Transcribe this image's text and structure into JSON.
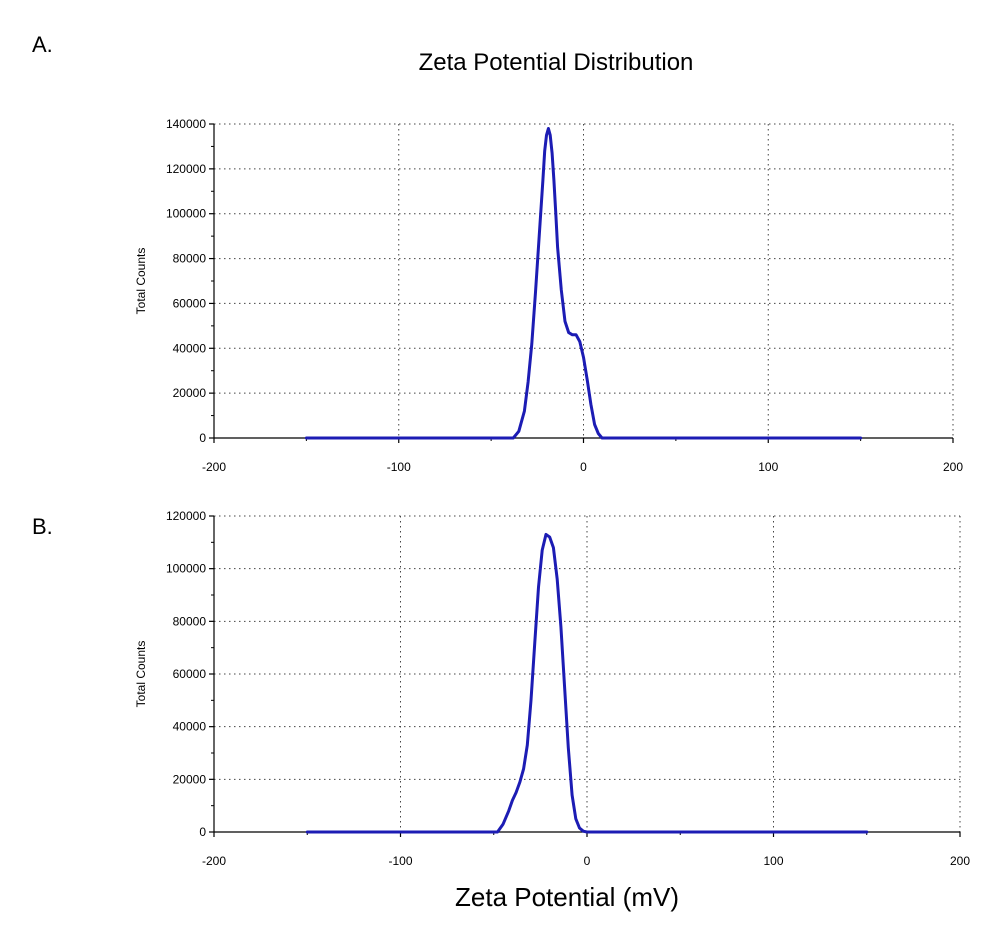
{
  "figure": {
    "title": "Zeta Potential Distribution",
    "xlabel": "Zeta Potential (mV)",
    "line_color": "#1c1cb4"
  },
  "chart_data": [
    {
      "type": "line",
      "panel_label": "A.",
      "ylabel": "Total Counts",
      "xlim": [
        -200,
        200
      ],
      "ylim": [
        0,
        140000
      ],
      "x_ticks": [
        -200,
        -100,
        0,
        100,
        200
      ],
      "y_ticks": [
        0,
        20000,
        40000,
        60000,
        80000,
        100000,
        120000,
        140000
      ],
      "grid": true,
      "series": [
        {
          "color": "#1c1cb4",
          "x": [
            -150,
            -38,
            -35,
            -32,
            -30,
            -28,
            -26,
            -24,
            -22,
            -21,
            -20,
            -19,
            -18,
            -17,
            -16,
            -15,
            -14,
            -12,
            -10,
            -8,
            -6,
            -4,
            -2,
            0,
            2,
            4,
            6,
            8,
            10,
            15,
            150
          ],
          "y": [
            0,
            0,
            3000,
            12000,
            25000,
            42000,
            65000,
            90000,
            115000,
            128000,
            135000,
            138000,
            135000,
            127000,
            115000,
            100000,
            85000,
            66000,
            52000,
            47000,
            46000,
            46000,
            43000,
            36000,
            26000,
            15000,
            6000,
            2000,
            0,
            0,
            0
          ]
        }
      ]
    },
    {
      "type": "line",
      "panel_label": "B.",
      "ylabel": "Total Counts",
      "xlim": [
        -200,
        200
      ],
      "ylim": [
        0,
        120000
      ],
      "x_ticks": [
        -200,
        -100,
        0,
        100,
        200
      ],
      "y_ticks": [
        0,
        20000,
        40000,
        60000,
        80000,
        100000,
        120000
      ],
      "grid": true,
      "series": [
        {
          "color": "#1c1cb4",
          "x": [
            -150,
            -48,
            -45,
            -42,
            -40,
            -38,
            -36,
            -34,
            -32,
            -30,
            -28,
            -26,
            -24,
            -22,
            -20,
            -18,
            -16,
            -14,
            -12,
            -10,
            -8,
            -6,
            -4,
            -2,
            0,
            150
          ],
          "y": [
            0,
            0,
            3000,
            8000,
            12000,
            15000,
            19000,
            24000,
            33000,
            50000,
            72000,
            93000,
            107000,
            113000,
            112000,
            108000,
            96000,
            78000,
            55000,
            32000,
            14000,
            5000,
            1500,
            300,
            0,
            0
          ]
        }
      ]
    }
  ]
}
